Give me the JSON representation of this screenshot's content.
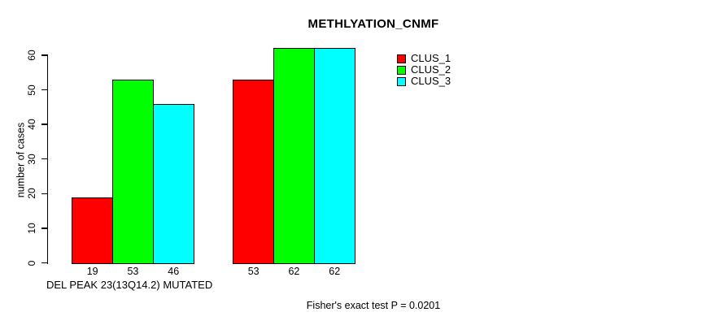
{
  "chart_data": {
    "type": "bar",
    "title": "METHLYATION_CNMF",
    "ylabel": "number of cases",
    "xlabel": "DEL PEAK 23(13Q14.2) MUTATED",
    "footnote": "Fisher's exact test P = 0.0201",
    "ylim": [
      0,
      62
    ],
    "yticks": [
      0,
      10,
      20,
      30,
      40,
      50,
      60
    ],
    "grid": false,
    "legend_position": "top-right",
    "series": [
      {
        "name": "CLUS_1",
        "color": "#ff0000"
      },
      {
        "name": "CLUS_2",
        "color": "#00ff00"
      },
      {
        "name": "CLUS_3",
        "color": "#00ffff"
      }
    ],
    "groups": [
      {
        "values": [
          19,
          53,
          46
        ],
        "bar_labels": [
          "19",
          "53",
          "46"
        ]
      },
      {
        "values": [
          53,
          62,
          62
        ],
        "bar_labels": [
          "53",
          "62",
          "62"
        ]
      }
    ]
  }
}
